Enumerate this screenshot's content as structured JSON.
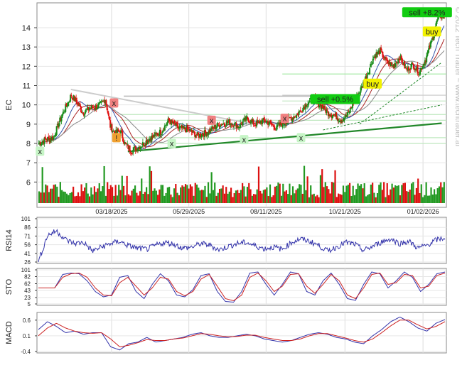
{
  "chart_data": [
    {
      "type": "candlestick",
      "ylabel": "EC",
      "ylim": [
        7,
        14.9
      ],
      "y_ticks": [
        "6",
        "7",
        "8",
        "9",
        "10",
        "11",
        "12",
        "13",
        "14"
      ],
      "x_ticks": [
        "03/18/2025",
        "05/29/2025",
        "08/11/2025",
        "10/21/2025",
        "01/02/2026"
      ],
      "close_series": [
        {
          "i": 0,
          "v": 8.0
        },
        {
          "i": 8,
          "v": 8.2
        },
        {
          "i": 18,
          "v": 8.3
        },
        {
          "i": 28,
          "v": 9.4
        },
        {
          "i": 40,
          "v": 10.5
        },
        {
          "i": 46,
          "v": 10.2
        },
        {
          "i": 54,
          "v": 9.6
        },
        {
          "i": 62,
          "v": 9.8
        },
        {
          "i": 70,
          "v": 9.9
        },
        {
          "i": 76,
          "v": 10.0
        },
        {
          "i": 82,
          "v": 10.3
        },
        {
          "i": 88,
          "v": 8.9
        },
        {
          "i": 94,
          "v": 8.5
        },
        {
          "i": 100,
          "v": 8.7
        },
        {
          "i": 106,
          "v": 8.0
        },
        {
          "i": 114,
          "v": 7.6
        },
        {
          "i": 126,
          "v": 7.9
        },
        {
          "i": 138,
          "v": 8.3
        },
        {
          "i": 150,
          "v": 8.6
        },
        {
          "i": 160,
          "v": 9.2
        },
        {
          "i": 172,
          "v": 8.8
        },
        {
          "i": 184,
          "v": 8.7
        },
        {
          "i": 196,
          "v": 8.4
        },
        {
          "i": 208,
          "v": 8.6
        },
        {
          "i": 222,
          "v": 9.0
        },
        {
          "i": 234,
          "v": 9.1
        },
        {
          "i": 246,
          "v": 8.9
        },
        {
          "i": 256,
          "v": 9.3
        },
        {
          "i": 266,
          "v": 9.0
        },
        {
          "i": 278,
          "v": 9.2
        },
        {
          "i": 292,
          "v": 8.8
        },
        {
          "i": 306,
          "v": 9.2
        },
        {
          "i": 318,
          "v": 9.5
        },
        {
          "i": 330,
          "v": 10.1
        },
        {
          "i": 338,
          "v": 10.3
        },
        {
          "i": 346,
          "v": 10.0
        },
        {
          "i": 356,
          "v": 9.6
        },
        {
          "i": 366,
          "v": 9.4
        },
        {
          "i": 372,
          "v": 9.2
        },
        {
          "i": 380,
          "v": 9.5
        },
        {
          "i": 388,
          "v": 10.2
        },
        {
          "i": 396,
          "v": 10.8
        },
        {
          "i": 404,
          "v": 11.6
        },
        {
          "i": 412,
          "v": 12.5
        },
        {
          "i": 420,
          "v": 12.8
        },
        {
          "i": 428,
          "v": 12.2
        },
        {
          "i": 436,
          "v": 12.0
        },
        {
          "i": 444,
          "v": 12.5
        },
        {
          "i": 452,
          "v": 11.8
        },
        {
          "i": 460,
          "v": 12.1
        },
        {
          "i": 468,
          "v": 11.7
        },
        {
          "i": 476,
          "v": 12.4
        },
        {
          "i": 484,
          "v": 13.4
        },
        {
          "i": 490,
          "v": 14.4
        },
        {
          "i": 494,
          "v": 14.6
        }
      ],
      "signals": [
        {
          "label": "x",
          "kind": "cover",
          "i": 2,
          "price": 7.6
        },
        {
          "label": "x",
          "kind": "exit",
          "i": 93,
          "price": 10.1
        },
        {
          "label": "!",
          "kind": "alert",
          "i": 96,
          "price": 8.3
        },
        {
          "label": "x",
          "kind": "cover",
          "i": 164,
          "price": 8.0
        },
        {
          "label": "x",
          "kind": "exit",
          "i": 213,
          "price": 9.2
        },
        {
          "label": "x",
          "kind": "cover",
          "i": 253,
          "price": 8.2
        },
        {
          "label": "x",
          "kind": "exit",
          "i": 303,
          "price": 9.3
        },
        {
          "label": "x",
          "kind": "cover",
          "i": 323,
          "price": 8.3
        },
        {
          "label": "sell +0.5%",
          "kind": "sell",
          "i": 365,
          "price": 10.3
        },
        {
          "label": "buy",
          "kind": "buy",
          "i": 411,
          "price": 11.1
        },
        {
          "label": "sell +8.2%",
          "kind": "sell",
          "i": 478,
          "price": 14.8
        },
        {
          "label": "buy",
          "kind": "buy",
          "i": 484,
          "price": 13.8
        }
      ],
      "watermark": "© 2012 Tech Trader ~ www.techtrader.ai"
    },
    {
      "type": "line",
      "ylabel": "RSI14",
      "y_ticks": [
        "26",
        "41",
        "56",
        "71",
        "86",
        "101"
      ],
      "ylim": [
        26,
        101
      ],
      "series": [
        {
          "values": [
            26,
            72,
            80,
            65,
            58,
            60,
            45,
            52,
            58,
            62,
            54,
            50,
            48,
            55,
            60,
            57,
            50,
            52,
            58,
            55,
            47,
            53,
            58,
            60,
            54,
            49,
            52,
            48,
            60,
            66,
            62,
            55,
            45,
            52,
            60,
            57,
            46,
            53,
            61,
            66,
            58,
            62,
            50,
            55,
            64,
            68
          ]
        }
      ]
    },
    {
      "type": "line",
      "ylabel": "STO",
      "y_ticks": [
        "5",
        "23",
        "43",
        "62",
        "82",
        "101"
      ],
      "ylim": [
        5,
        101
      ],
      "series": [
        {
          "values": [
            50,
            50,
            50,
            88,
            92,
            90,
            70,
            40,
            25,
            30,
            80,
            85,
            40,
            20,
            60,
            90,
            70,
            30,
            25,
            45,
            85,
            90,
            40,
            12,
            10,
            40,
            92,
            95,
            60,
            30,
            60,
            95,
            90,
            40,
            30,
            70,
            92,
            60,
            20,
            15,
            60,
            95,
            90,
            50,
            70,
            95,
            80,
            40,
            60,
            90,
            95
          ]
        },
        {
          "values": [
            50,
            50,
            50,
            80,
            90,
            92,
            80,
            50,
            30,
            28,
            65,
            80,
            55,
            30,
            50,
            80,
            75,
            40,
            28,
            40,
            75,
            88,
            55,
            20,
            14,
            30,
            80,
            92,
            70,
            40,
            55,
            88,
            90,
            55,
            35,
            60,
            88,
            70,
            30,
            20,
            50,
            88,
            92,
            60,
            65,
            88,
            85,
            50,
            55,
            85,
            92
          ]
        }
      ]
    },
    {
      "type": "line",
      "ylabel": "MACD",
      "y_ticks": [
        "0.6",
        "0.1",
        "-0.4"
      ],
      "ylim": [
        -0.4,
        0.8
      ],
      "series": [
        {
          "values": [
            0.3,
            0.55,
            0.4,
            0.2,
            0.25,
            0.15,
            0.2,
            0.2,
            -0.25,
            -0.35,
            -0.15,
            -0.1,
            0.05,
            -0.1,
            -0.05,
            0.0,
            0.05,
            0.15,
            0.2,
            0.1,
            0.05,
            0.05,
            0.1,
            0.15,
            0.1,
            0.0,
            -0.05,
            -0.1,
            -0.05,
            0.05,
            0.15,
            0.2,
            0.15,
            0.05,
            0.0,
            -0.1,
            -0.15,
            0.1,
            0.3,
            0.55,
            0.7,
            0.55,
            0.35,
            0.25,
            0.5,
            0.62
          ]
        },
        {
          "values": [
            0.1,
            0.35,
            0.5,
            0.35,
            0.25,
            0.2,
            0.18,
            0.2,
            0.0,
            -0.25,
            -0.2,
            -0.12,
            -0.02,
            -0.05,
            -0.05,
            0.0,
            0.03,
            0.1,
            0.17,
            0.15,
            0.1,
            0.07,
            0.08,
            0.12,
            0.12,
            0.05,
            0.0,
            -0.05,
            -0.05,
            0.0,
            0.1,
            0.17,
            0.17,
            0.1,
            0.03,
            -0.05,
            -0.1,
            0.0,
            0.2,
            0.42,
            0.6,
            0.6,
            0.45,
            0.32,
            0.4,
            0.55
          ]
        }
      ]
    }
  ],
  "colors": {
    "up": "#1a8c1a",
    "down": "#e01010",
    "volume_up": "#229922",
    "volume_down": "#dd1111",
    "ma_blue": "#3355aa",
    "ma_red": "#aa2222",
    "ma_gray": "#888888",
    "trend": "#22882a",
    "resistance": "#bbbbbb",
    "indicator_blue": "#3333aa",
    "indicator_red": "#cc2222",
    "sell_badge": "#11cc11",
    "buy_badge": "#f2f200",
    "x_green": "#c6f5c6",
    "x_red": "#f08080",
    "alert": "#f0a030"
  }
}
